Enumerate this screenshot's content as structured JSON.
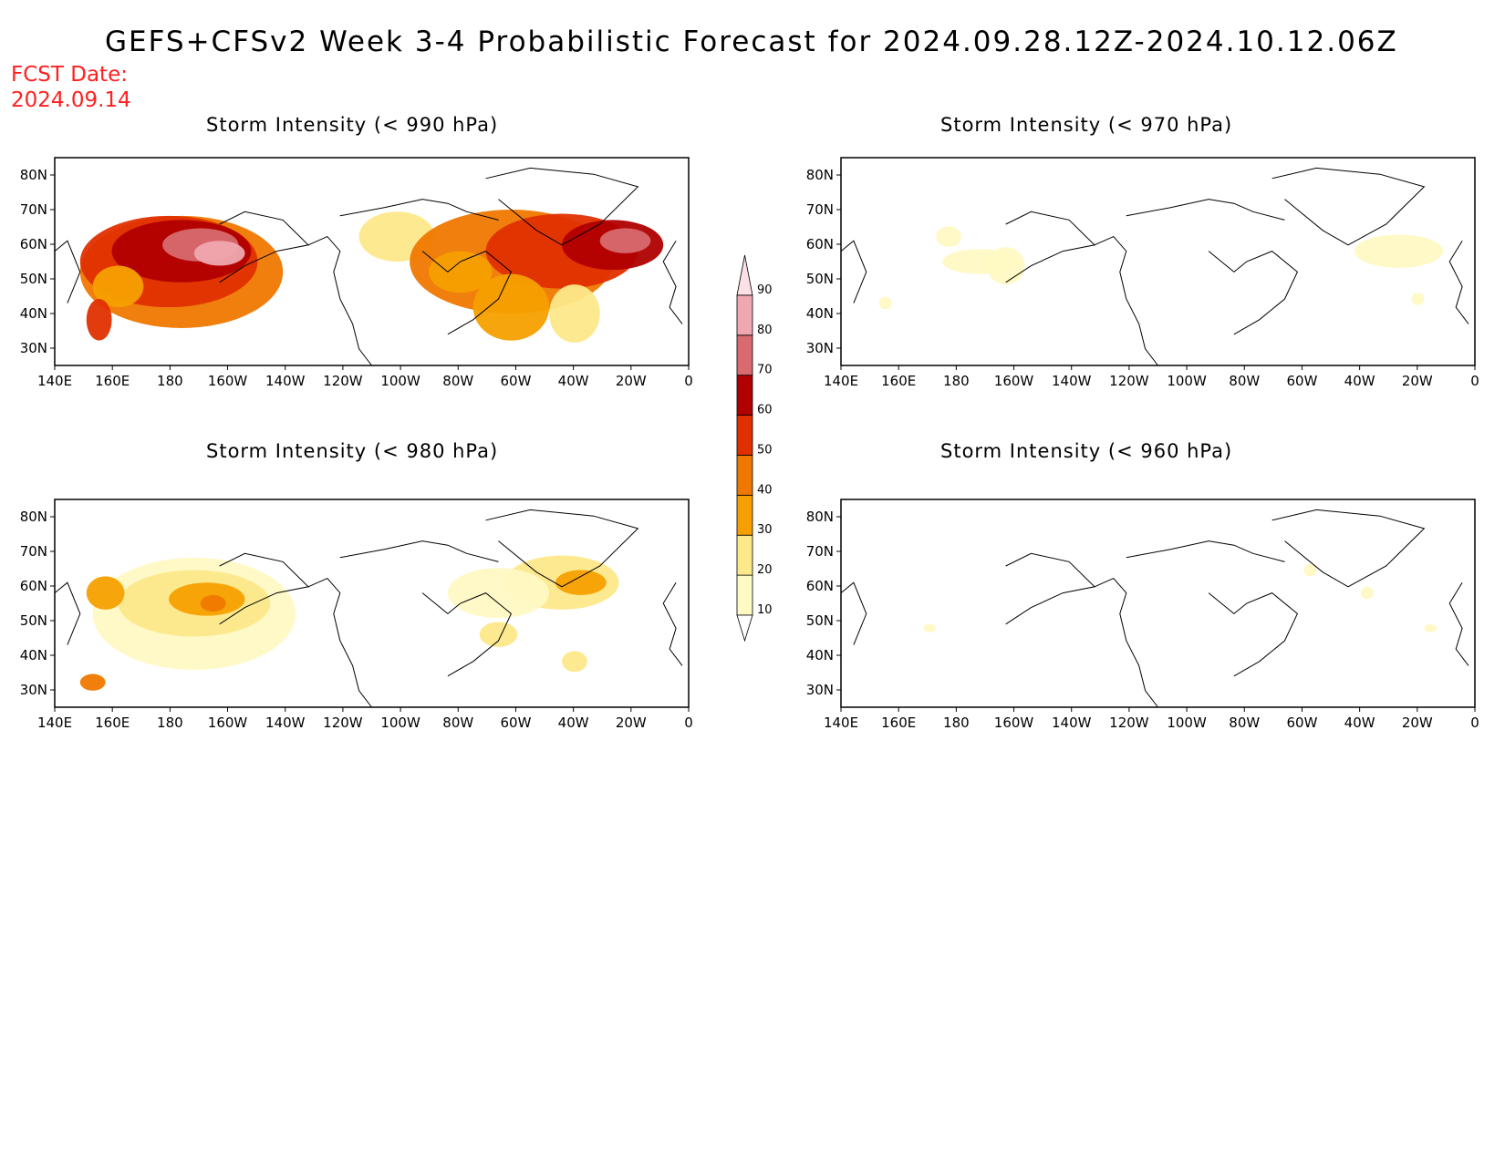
{
  "title": "GEFS+CFSv2 Week 3-4 Probabilistic Forecast for 2024.09.28.12Z-2024.10.12.06Z",
  "fcst_date_label": "FCST Date:",
  "fcst_date_value": "2024.09.14",
  "lon_labels": [
    "140E",
    "160E",
    "180",
    "160W",
    "140W",
    "120W",
    "100W",
    "80W",
    "60W",
    "40W",
    "20W",
    "0"
  ],
  "lat_labels": [
    "80N",
    "70N",
    "60N",
    "50N",
    "40N",
    "30N"
  ],
  "colorbar": {
    "levels": [
      "10",
      "20",
      "30",
      "40",
      "50",
      "60",
      "70",
      "80",
      "90"
    ],
    "colors": [
      "#fff9c4",
      "#fde88a",
      "#f5a000",
      "#f07800",
      "#e03000",
      "#b00000",
      "#d86a70",
      "#f0a8b0",
      "#fde0e6"
    ]
  },
  "panels": [
    {
      "id": "p990",
      "title": "Storm Intensity (< 990 hPa)"
    },
    {
      "id": "p970",
      "title": "Storm Intensity (< 970 hPa)"
    },
    {
      "id": "p980",
      "title": "Storm Intensity (< 980 hPa)"
    },
    {
      "id": "p960",
      "title": "Storm Intensity (< 960 hPa)"
    }
  ]
}
